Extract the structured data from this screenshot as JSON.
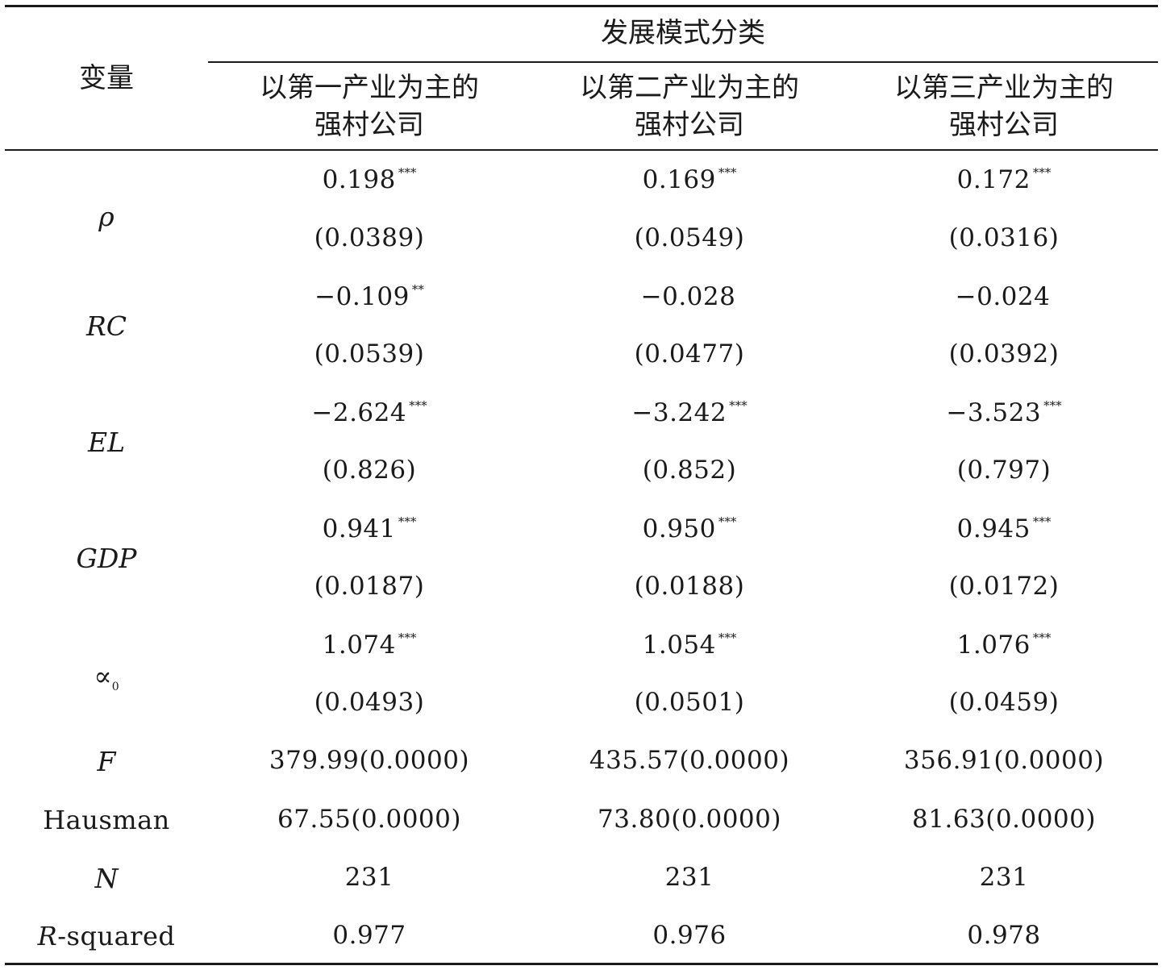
{
  "header": {
    "var_label": "变量",
    "group_label": "发展模式分类",
    "columns": [
      {
        "line1": "以第一产业为主的",
        "line2": "强村公司"
      },
      {
        "line1": "以第二产业为主的",
        "line2": "强村公司"
      },
      {
        "line1": "以第三产业为主的",
        "line2": "强村公司"
      }
    ]
  },
  "rows": [
    {
      "var": "ρ",
      "coef": [
        "0.198",
        "0.169",
        "0.172"
      ],
      "stars": [
        "***",
        "***",
        "***"
      ],
      "se": [
        "(0.0389)",
        "(0.0549)",
        "(0.0316)"
      ]
    },
    {
      "var": "RC",
      "coef": [
        "−0.109",
        "−0.028",
        "−0.024"
      ],
      "stars": [
        "**",
        "",
        ""
      ],
      "se": [
        "(0.0539)",
        "(0.0477)",
        "(0.0392)"
      ]
    },
    {
      "var": "EL",
      "coef": [
        "−2.624",
        "−3.242",
        "−3.523"
      ],
      "stars": [
        "***",
        "***",
        "***"
      ],
      "se": [
        "(0.826)",
        "(0.852)",
        "(0.797)"
      ]
    },
    {
      "var": "GDP",
      "coef": [
        "0.941",
        "0.950",
        "0.945"
      ],
      "stars": [
        "***",
        "***",
        "***"
      ],
      "se": [
        "(0.0187)",
        "(0.0188)",
        "(0.0172)"
      ]
    },
    {
      "var": "∝",
      "var_sub": "0",
      "coef": [
        "1.074",
        "1.054",
        "1.076"
      ],
      "stars": [
        "***",
        "***",
        "***"
      ],
      "se": [
        "(0.0493)",
        "(0.0501)",
        "(0.0459)"
      ]
    }
  ],
  "stats": {
    "F": {
      "label": "F",
      "values": [
        "379.99(0.0000)",
        "435.57(0.0000)",
        "356.91(0.0000)"
      ]
    },
    "Hausman": {
      "label": "Hausman",
      "values": [
        "67.55(0.0000)",
        "73.80(0.0000)",
        "81.63(0.0000)"
      ]
    },
    "N": {
      "label": "N",
      "values": [
        "231",
        "231",
        "231"
      ]
    },
    "R2": {
      "label_italic": "R",
      "label_rest": "-squared",
      "values": [
        "0.977",
        "0.976",
        "0.978"
      ]
    }
  }
}
